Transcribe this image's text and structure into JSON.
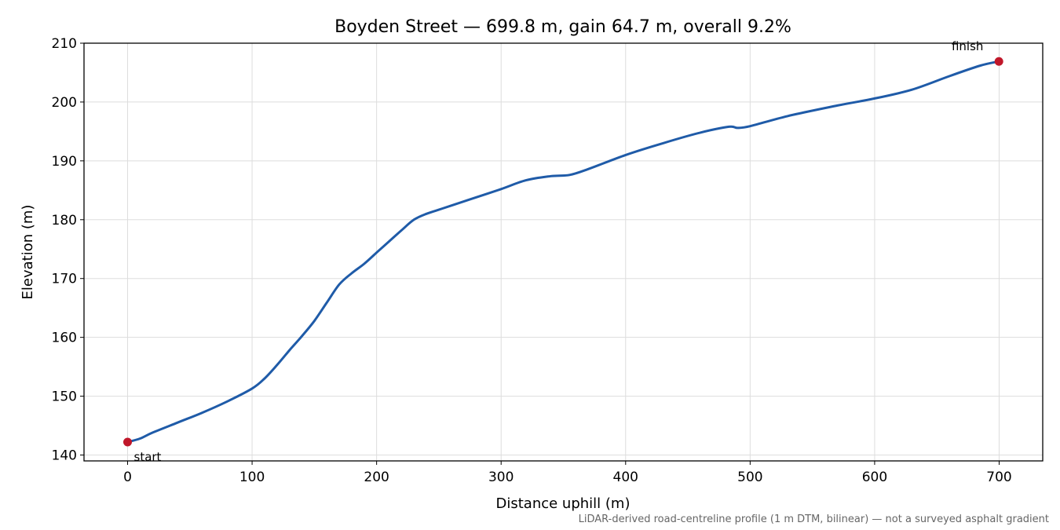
{
  "chart_data": {
    "type": "line",
    "title": "Boyden Street — 699.8 m, gain 64.7 m, overall 9.2%",
    "xlabel": "Distance uphill (m)",
    "ylabel": "Elevation (m)",
    "xlim": [
      -35,
      735
    ],
    "ylim": [
      139,
      210
    ],
    "xticks": [
      0,
      100,
      200,
      300,
      400,
      500,
      600,
      700
    ],
    "yticks": [
      140,
      150,
      160,
      170,
      180,
      190,
      200,
      210
    ],
    "grid": true,
    "line_color": "#1f5ba8",
    "marker_color": "#c0172a",
    "series": [
      {
        "x": [
          0,
          10,
          20,
          40,
          60,
          80,
          100,
          110,
          120,
          130,
          140,
          150,
          160,
          170,
          180,
          190,
          200,
          210,
          220,
          230,
          240,
          250,
          260,
          280,
          300,
          320,
          340,
          355,
          370,
          400,
          430,
          460,
          483,
          490,
          500,
          530,
          570,
          600,
          630,
          660,
          685,
          699.8
        ],
        "values": [
          142.2,
          142.8,
          143.8,
          145.5,
          147.2,
          149.1,
          151.3,
          153.0,
          155.3,
          157.8,
          160.2,
          162.8,
          165.9,
          169.0,
          170.9,
          172.5,
          174.4,
          176.3,
          178.2,
          180.0,
          181.0,
          181.7,
          182.4,
          183.8,
          185.2,
          186.7,
          187.4,
          187.6,
          188.6,
          191.0,
          193.0,
          194.8,
          195.8,
          195.6,
          195.9,
          197.6,
          199.4,
          200.6,
          202.1,
          204.4,
          206.2,
          206.9
        ]
      }
    ],
    "start_point": {
      "x": 0,
      "y": 142.2,
      "label": "start"
    },
    "finish_point": {
      "x": 699.8,
      "y": 206.9,
      "label": "finish"
    },
    "footnote": "LiDAR-derived road-centreline profile (1 m DTM, bilinear) — not a surveyed asphalt gradient"
  }
}
